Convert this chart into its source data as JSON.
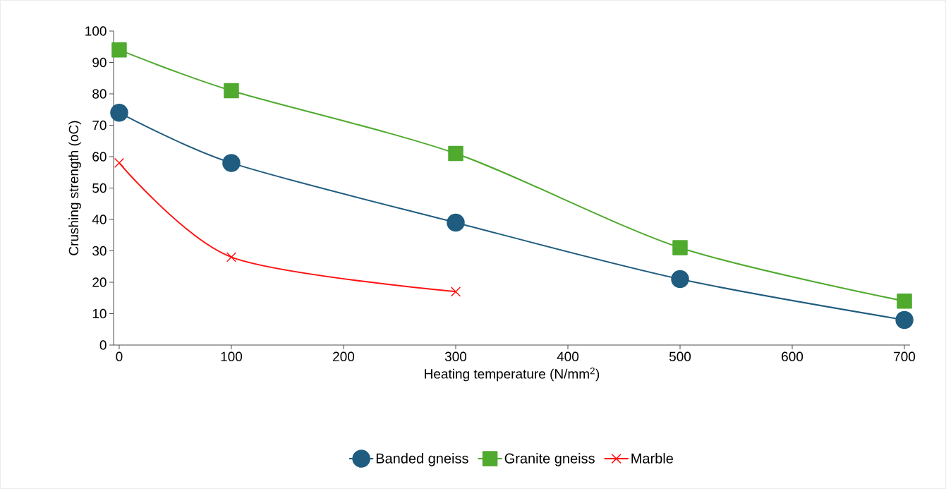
{
  "chart_data": {
    "type": "line",
    "xlabel": "Heating temperature (N/mm$^{2}$)",
    "ylabel": "Crushing strength (oC)",
    "x": [
      0,
      100,
      300,
      500,
      700
    ],
    "series": [
      {
        "name": "Banded gneiss",
        "color": "#1f5c7f",
        "marker": "circle",
        "values": [
          74,
          58,
          39,
          21,
          8
        ]
      },
      {
        "name": "Granite gneiss",
        "color": "#4faa2e",
        "marker": "square",
        "values": [
          94,
          81,
          61,
          31,
          14
        ]
      },
      {
        "name": "Marble",
        "color": "#ff1111",
        "marker": "cross",
        "x": [
          0,
          100,
          300
        ],
        "values": [
          58,
          28,
          17
        ]
      }
    ],
    "xlim": [
      -5,
      705
    ],
    "ylim": [
      0,
      100
    ],
    "xticks": [
      0,
      100,
      200,
      300,
      400,
      500,
      600,
      700
    ],
    "yticks": [
      0,
      10,
      20,
      30,
      40,
      50,
      60,
      70,
      80,
      90,
      100
    ],
    "grid": false,
    "legend": "bottom"
  }
}
